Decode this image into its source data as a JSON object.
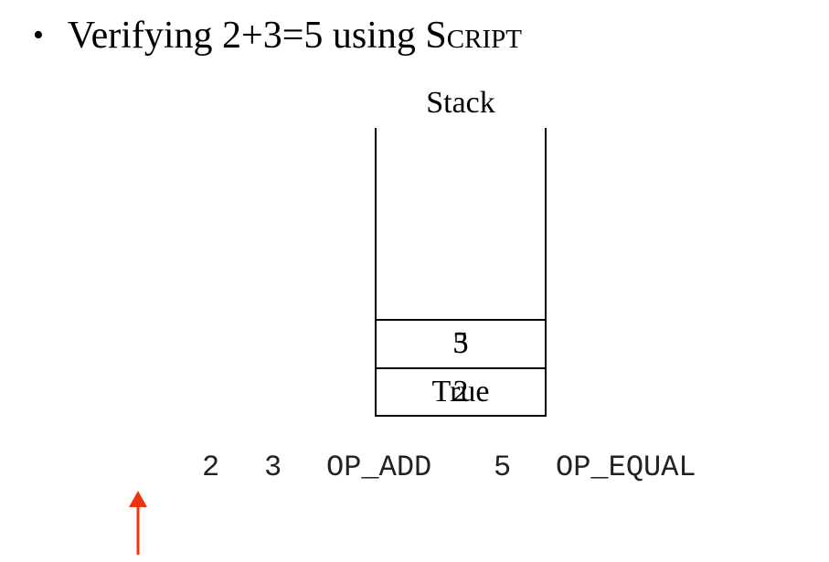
{
  "heading": {
    "bullet": "•",
    "text": "Verifying 2+3=5 using S",
    "small_caps": "cript"
  },
  "stack": {
    "label": "Stack",
    "upper_cell_glyphs": [
      "5",
      "3"
    ],
    "lower_cell_glyphs": [
      "True",
      "2"
    ]
  },
  "script": {
    "tokens": [
      "2",
      "3",
      "OP_ADD",
      "5",
      "OP_EQUAL"
    ]
  },
  "pointer": {
    "color": "#ee3311"
  }
}
